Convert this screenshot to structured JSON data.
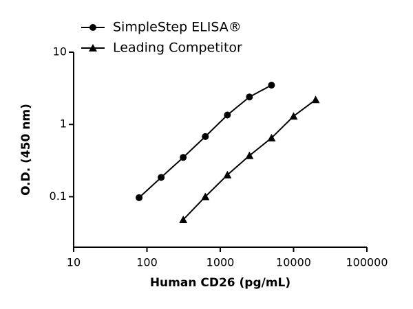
{
  "chart_data": {
    "type": "line",
    "xlabel": "Human CD26 (pg/mL)",
    "ylabel": "O.D. (450 nm)",
    "xscale": "log",
    "yscale": "log",
    "xlim": [
      10,
      100000
    ],
    "xticks": [
      10,
      100,
      1000,
      10000,
      100000
    ],
    "ylim": [
      0.02,
      10
    ],
    "yticks": [
      0.1,
      1,
      10
    ],
    "legend": "top-left",
    "series": [
      {
        "name": "SimpleStep ELISA®",
        "color": "#000000",
        "marker": "circle",
        "x": [
          78.125,
          156.25,
          312.5,
          625,
          1250,
          2500,
          5000
        ],
        "values": [
          0.097,
          0.185,
          0.35,
          0.68,
          1.35,
          2.4,
          3.5
        ]
      },
      {
        "name": "Leading Competitor",
        "color": "#000000",
        "marker": "triangle",
        "x": [
          312.5,
          625,
          1250,
          2500,
          5000,
          10000,
          20000
        ],
        "values": [
          0.048,
          0.1,
          0.2,
          0.37,
          0.65,
          1.3,
          2.2
        ]
      }
    ]
  }
}
